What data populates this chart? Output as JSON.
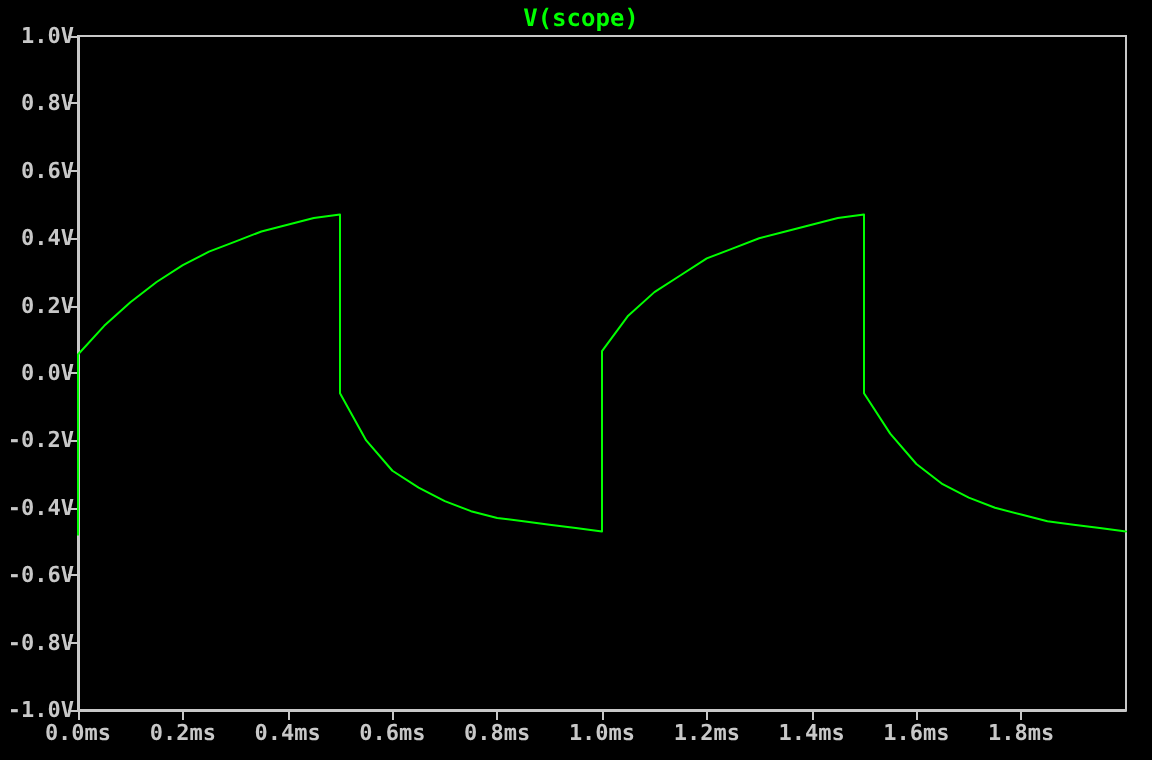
{
  "chart_data": {
    "type": "line",
    "x": [
      0,
      0,
      0.05,
      0.1,
      0.15,
      0.2,
      0.25,
      0.3,
      0.35,
      0.4,
      0.45,
      0.5,
      0.5,
      0.55,
      0.6,
      0.65,
      0.7,
      0.75,
      0.8,
      0.85,
      0.9,
      0.95,
      1.0,
      1.0,
      1.05,
      1.1,
      1.15,
      1.2,
      1.25,
      1.3,
      1.35,
      1.4,
      1.45,
      1.5,
      1.5,
      1.55,
      1.6,
      1.65,
      1.7,
      1.75,
      1.8,
      1.85,
      1.9,
      1.95,
      2.0
    ],
    "series": [
      {
        "name": "V(scope)",
        "color": "#00ff00",
        "values": [
          -0.48,
          0.055,
          0.14,
          0.21,
          0.27,
          0.32,
          0.36,
          0.39,
          0.42,
          0.44,
          0.46,
          0.47,
          -0.06,
          -0.2,
          -0.29,
          -0.34,
          -0.38,
          -0.41,
          -0.43,
          -0.44,
          -0.45,
          -0.46,
          -0.47,
          0.065,
          0.17,
          0.24,
          0.29,
          0.34,
          0.37,
          0.4,
          0.42,
          0.44,
          0.46,
          0.47,
          -0.06,
          -0.18,
          -0.27,
          -0.33,
          -0.37,
          -0.4,
          -0.42,
          -0.44,
          -0.45,
          -0.46,
          -0.47
        ]
      }
    ],
    "xlim": [
      0,
      2
    ],
    "ylim": [
      -1,
      1
    ],
    "xticks": [
      {
        "value": 0,
        "label": "0.0ms"
      },
      {
        "value": 0.2,
        "label": "0.2ms"
      },
      {
        "value": 0.4,
        "label": "0.4ms"
      },
      {
        "value": 0.6,
        "label": "0.6ms"
      },
      {
        "value": 0.8,
        "label": "0.8ms"
      },
      {
        "value": 1.0,
        "label": "1.0ms"
      },
      {
        "value": 1.2,
        "label": "1.2ms"
      },
      {
        "value": 1.4,
        "label": "1.4ms"
      },
      {
        "value": 1.6,
        "label": "1.6ms"
      },
      {
        "value": 1.8,
        "label": "1.8ms"
      }
    ],
    "yticks": [
      {
        "value": -1,
        "label": "-1.0V"
      },
      {
        "value": -0.8,
        "label": "-0.8V"
      },
      {
        "value": -0.6,
        "label": "-0.6V"
      },
      {
        "value": -0.4,
        "label": "-0.4V"
      },
      {
        "value": -0.2,
        "label": "-0.2V"
      },
      {
        "value": 0,
        "label": "0.0V"
      },
      {
        "value": 0.2,
        "label": "0.2V"
      },
      {
        "value": 0.4,
        "label": "0.4V"
      },
      {
        "value": 0.6,
        "label": "0.6V"
      },
      {
        "value": 0.8,
        "label": "0.8V"
      },
      {
        "value": 1.0,
        "label": "1.0V"
      }
    ],
    "legend": "top",
    "grid": false,
    "marker": "none",
    "line_style": "solid"
  }
}
